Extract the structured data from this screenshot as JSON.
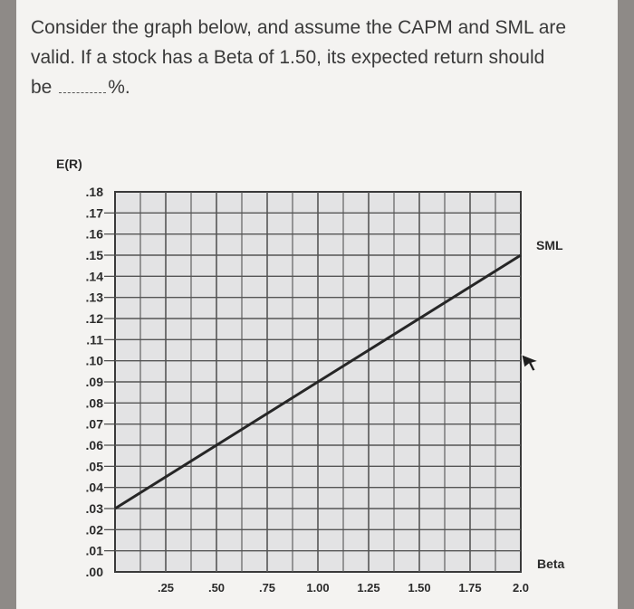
{
  "question": {
    "line1": "Consider the graph below, and assume the CAPM and SML are",
    "line2": "valid.  If a stock has a Beta of 1.50, its expected return should",
    "line3_start": "be",
    "line3_end": "%."
  },
  "chart_data": {
    "type": "line",
    "title": "",
    "xlabel": "Beta",
    "ylabel": "E(R)",
    "x_ticks": [
      ".25",
      ".50",
      ".75",
      "1.00",
      "1.25",
      "1.50",
      "1.75",
      "2.0"
    ],
    "y_ticks": [
      ".00",
      ".01",
      ".02",
      ".03",
      ".04",
      ".05",
      ".06",
      ".07",
      ".08",
      ".09",
      ".10",
      ".11",
      ".12",
      ".13",
      ".14",
      ".15",
      ".16",
      ".17",
      ".18"
    ],
    "xlim": [
      0,
      2.0
    ],
    "ylim": [
      0,
      0.18
    ],
    "grid": true,
    "series": [
      {
        "name": "SML",
        "x": [
          0,
          2.0
        ],
        "y": [
          0.03,
          0.15
        ]
      }
    ],
    "annotation": "SML"
  }
}
